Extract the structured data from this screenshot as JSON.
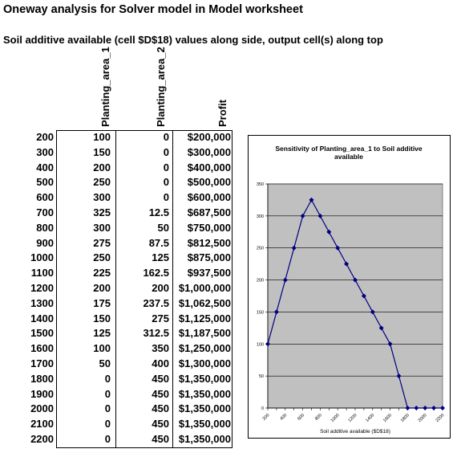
{
  "header": {
    "title": "Oneway analysis for Solver model in Model worksheet",
    "subtitle": "Soil additive available (cell $D$18) values along side, output cell(s) along top"
  },
  "table": {
    "columns": [
      "Planting_area_1",
      "Planting_area_2",
      "Profit"
    ],
    "rows": [
      {
        "label": "200",
        "cells": [
          "100",
          "0",
          "$200,000"
        ]
      },
      {
        "label": "300",
        "cells": [
          "150",
          "0",
          "$300,000"
        ]
      },
      {
        "label": "400",
        "cells": [
          "200",
          "0",
          "$400,000"
        ]
      },
      {
        "label": "500",
        "cells": [
          "250",
          "0",
          "$500,000"
        ]
      },
      {
        "label": "600",
        "cells": [
          "300",
          "0",
          "$600,000"
        ]
      },
      {
        "label": "700",
        "cells": [
          "325",
          "12.5",
          "$687,500"
        ]
      },
      {
        "label": "800",
        "cells": [
          "300",
          "50",
          "$750,000"
        ]
      },
      {
        "label": "900",
        "cells": [
          "275",
          "87.5",
          "$812,500"
        ]
      },
      {
        "label": "1000",
        "cells": [
          "250",
          "125",
          "$875,000"
        ]
      },
      {
        "label": "1100",
        "cells": [
          "225",
          "162.5",
          "$937,500"
        ]
      },
      {
        "label": "1200",
        "cells": [
          "200",
          "200",
          "$1,000,000"
        ]
      },
      {
        "label": "1300",
        "cells": [
          "175",
          "237.5",
          "$1,062,500"
        ]
      },
      {
        "label": "1400",
        "cells": [
          "150",
          "275",
          "$1,125,000"
        ]
      },
      {
        "label": "1500",
        "cells": [
          "125",
          "312.5",
          "$1,187,500"
        ]
      },
      {
        "label": "1600",
        "cells": [
          "100",
          "350",
          "$1,250,000"
        ]
      },
      {
        "label": "1700",
        "cells": [
          "50",
          "400",
          "$1,300,000"
        ]
      },
      {
        "label": "1800",
        "cells": [
          "0",
          "450",
          "$1,350,000"
        ]
      },
      {
        "label": "1900",
        "cells": [
          "0",
          "450",
          "$1,350,000"
        ]
      },
      {
        "label": "2000",
        "cells": [
          "0",
          "450",
          "$1,350,000"
        ]
      },
      {
        "label": "2100",
        "cells": [
          "0",
          "450",
          "$1,350,000"
        ]
      },
      {
        "label": "2200",
        "cells": [
          "0",
          "450",
          "$1,350,000"
        ]
      }
    ]
  },
  "chart_data": {
    "type": "line",
    "title": "Sensitivity of Planting_area_1 to Soil additive available",
    "xlabel": "Soil additive available ($D$18)",
    "ylabel": "",
    "categories": [
      "200",
      "300",
      "400",
      "500",
      "600",
      "700",
      "800",
      "900",
      "1000",
      "1100",
      "1200",
      "1300",
      "1400",
      "1500",
      "1600",
      "1700",
      "1800",
      "1900",
      "2000",
      "2100",
      "2200"
    ],
    "x_tick_labels": [
      "200",
      "400",
      "600",
      "800",
      "1000",
      "1200",
      "1400",
      "1600",
      "1800",
      "2000",
      "2200"
    ],
    "y_ticks": [
      0,
      50,
      100,
      150,
      200,
      250,
      300,
      350
    ],
    "ylim": [
      0,
      350
    ],
    "grid": true,
    "series": [
      {
        "values": [
          100,
          150,
          200,
          250,
          300,
          325,
          300,
          275,
          250,
          225,
          200,
          175,
          150,
          125,
          100,
          50,
          0,
          0,
          0,
          0,
          0
        ]
      }
    ],
    "colors": {
      "plot_bg": "#c0c0c0",
      "line": "#000080",
      "marker": "#000080",
      "grid": "#000000"
    }
  }
}
